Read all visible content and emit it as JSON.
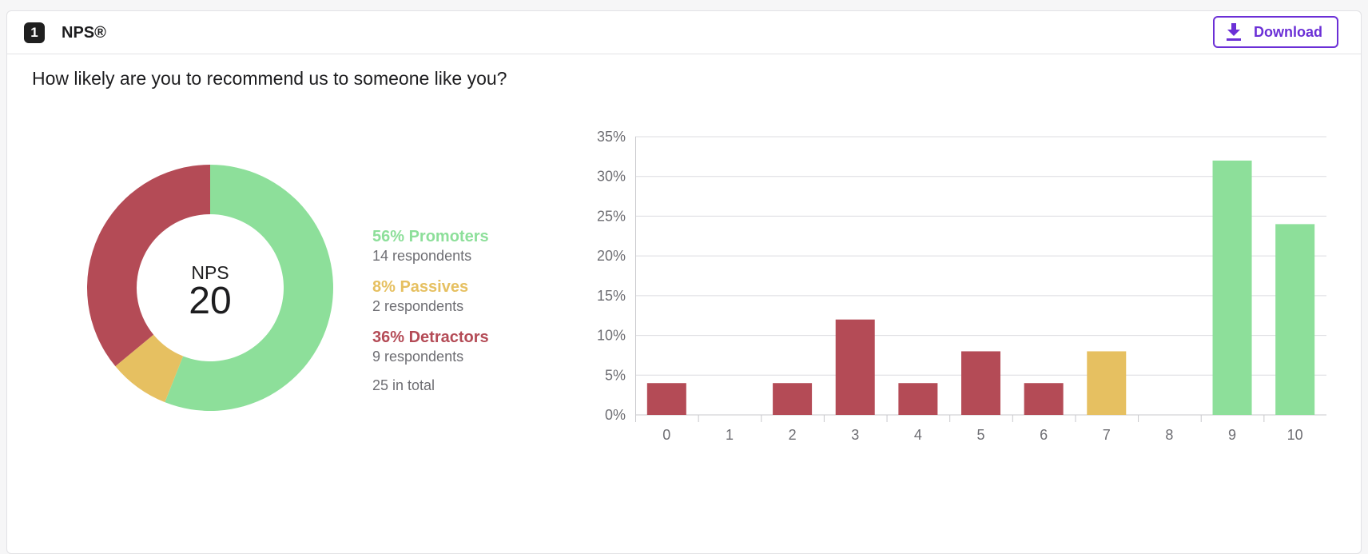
{
  "header": {
    "question_number": "1",
    "title": "NPS®",
    "download_label": "Download"
  },
  "question": "How likely are you to recommend us to someone like you?",
  "summary": {
    "center_label": "NPS",
    "score": "20",
    "promoters": {
      "label": "56% Promoters",
      "respondents": "14 respondents",
      "percent": 56
    },
    "passives": {
      "label": "8% Passives",
      "respondents": "2 respondents",
      "percent": 8
    },
    "detractors": {
      "label": "36% Detractors",
      "respondents": "9 respondents",
      "percent": 36
    },
    "total": "25 in total"
  },
  "colors": {
    "promoter": "#8ddf9a",
    "passive": "#e6c061",
    "detractor": "#b44b56",
    "accent": "#6b2fd6"
  },
  "chart_data": [
    {
      "type": "pie",
      "donut": true,
      "categories": [
        "Promoters",
        "Passives",
        "Detractors"
      ],
      "values": [
        56,
        8,
        36
      ],
      "center_text": "NPS 20"
    },
    {
      "type": "bar",
      "categories": [
        "0",
        "1",
        "2",
        "3",
        "4",
        "5",
        "6",
        "7",
        "8",
        "9",
        "10"
      ],
      "values": [
        4,
        0,
        4,
        12,
        4,
        8,
        4,
        8,
        0,
        32,
        24
      ],
      "bar_groups": [
        "detractor",
        "detractor",
        "detractor",
        "detractor",
        "detractor",
        "detractor",
        "detractor",
        "passive",
        "passive",
        "promoter",
        "promoter"
      ],
      "yticks": [
        "0%",
        "5%",
        "10%",
        "15%",
        "20%",
        "25%",
        "30%",
        "35%"
      ],
      "ylim": [
        0,
        35
      ],
      "grid": true
    }
  ]
}
